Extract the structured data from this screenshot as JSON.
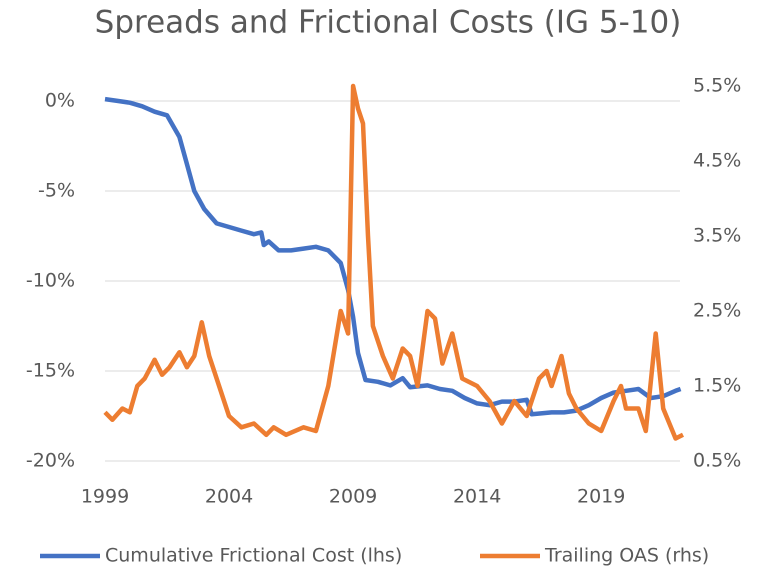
{
  "chart_data": {
    "type": "line",
    "title": "Spreads and Frictional Costs (IG 5-10)",
    "xlim": [
      1999,
      2022.5
    ],
    "xticks": [
      1999,
      2004,
      2009,
      2014,
      2019
    ],
    "ylim": [
      -20,
      0.83
    ],
    "yticks": [
      {
        "value": 0,
        "label": "0%"
      },
      {
        "value": -5,
        "label": "-5%"
      },
      {
        "value": -10,
        "label": "-10%"
      },
      {
        "value": -15,
        "label": "-15%"
      },
      {
        "value": -20,
        "label": "-20%"
      }
    ],
    "y2lim": [
      0.5,
      5.5
    ],
    "y2ticks": [
      {
        "value": 5.5,
        "label": "5.5%"
      },
      {
        "value": 4.5,
        "label": "4.5%"
      },
      {
        "value": 3.5,
        "label": "3.5%"
      },
      {
        "value": 2.5,
        "label": "2.5%"
      },
      {
        "value": 1.5,
        "label": "1.5%"
      },
      {
        "value": 0.5,
        "label": "0.5%"
      }
    ],
    "grid": true,
    "legend": "bottom",
    "series": [
      {
        "name": "Cumulative Frictional Cost (lhs)",
        "color": "#4472c4",
        "x": [
          1999.0,
          1999.5,
          2000.0,
          2000.5,
          2001.0,
          2001.5,
          2002.0,
          2002.3,
          2002.6,
          2003.0,
          2003.5,
          2004.0,
          2004.5,
          2005.0,
          2005.3,
          2005.4,
          2005.6,
          2006.0,
          2006.5,
          2007.0,
          2007.5,
          2008.0,
          2008.5,
          2008.8,
          2009.0,
          2009.2,
          2009.5,
          2010.0,
          2010.5,
          2011.0,
          2011.3,
          2012.0,
          2012.5,
          2013.0,
          2013.5,
          2014.0,
          2014.5,
          2015.0,
          2015.5,
          2016.0,
          2016.2,
          2017.0,
          2017.5,
          2018.0,
          2018.5,
          2019.0,
          2019.5,
          2020.0,
          2020.5,
          2021.0,
          2021.5,
          2022.0,
          2022.2
        ],
        "values": [
          0.1,
          0.0,
          -0.1,
          -0.3,
          -0.6,
          -0.8,
          -2.0,
          -3.5,
          -5.0,
          -6.0,
          -6.8,
          -7.0,
          -7.2,
          -7.4,
          -7.3,
          -8.0,
          -7.8,
          -8.3,
          -8.3,
          -8.2,
          -8.1,
          -8.3,
          -9.0,
          -10.5,
          -12.0,
          -14.0,
          -15.5,
          -15.6,
          -15.8,
          -15.4,
          -15.9,
          -15.8,
          -16.0,
          -16.1,
          -16.5,
          -16.8,
          -16.9,
          -16.7,
          -16.7,
          -16.6,
          -17.4,
          -17.3,
          -17.3,
          -17.2,
          -16.9,
          -16.5,
          -16.2,
          -16.1,
          -16.0,
          -16.5,
          -16.4,
          -16.1,
          -16.0
        ]
      },
      {
        "name": "Trailing OAS (rhs)",
        "color": "#ed7d31",
        "axis": "y2",
        "x": [
          1999.0,
          1999.3,
          1999.7,
          2000.0,
          2000.3,
          2000.6,
          2001.0,
          2001.3,
          2001.6,
          2002.0,
          2002.3,
          2002.6,
          2002.9,
          2003.2,
          2003.6,
          2004.0,
          2004.5,
          2005.0,
          2005.5,
          2005.8,
          2006.3,
          2007.0,
          2007.5,
          2008.0,
          2008.5,
          2008.8,
          2009.0,
          2009.2,
          2009.4,
          2009.6,
          2009.8,
          2010.2,
          2010.6,
          2011.0,
          2011.3,
          2011.6,
          2012.0,
          2012.3,
          2012.6,
          2013.0,
          2013.4,
          2014.0,
          2014.5,
          2015.0,
          2015.5,
          2016.0,
          2016.5,
          2016.8,
          2017.0,
          2017.4,
          2017.7,
          2018.0,
          2018.5,
          2019.0,
          2019.5,
          2019.8,
          2020.0,
          2020.5,
          2020.8,
          2021.2,
          2021.5,
          2022.0,
          2022.3
        ],
        "values": [
          1.15,
          1.05,
          1.2,
          1.15,
          1.5,
          1.6,
          1.85,
          1.65,
          1.75,
          1.95,
          1.75,
          1.9,
          2.35,
          1.9,
          1.5,
          1.1,
          0.95,
          1.0,
          0.85,
          0.95,
          0.85,
          0.95,
          0.9,
          1.5,
          2.5,
          2.2,
          5.5,
          5.2,
          5.0,
          3.5,
          2.3,
          1.9,
          1.6,
          2.0,
          1.9,
          1.5,
          2.5,
          2.4,
          1.8,
          2.2,
          1.6,
          1.5,
          1.3,
          1.0,
          1.3,
          1.1,
          1.6,
          1.7,
          1.5,
          1.9,
          1.4,
          1.2,
          1.0,
          0.9,
          1.3,
          1.5,
          1.2,
          1.2,
          0.9,
          2.2,
          1.2,
          0.8,
          0.85
        ]
      }
    ]
  }
}
